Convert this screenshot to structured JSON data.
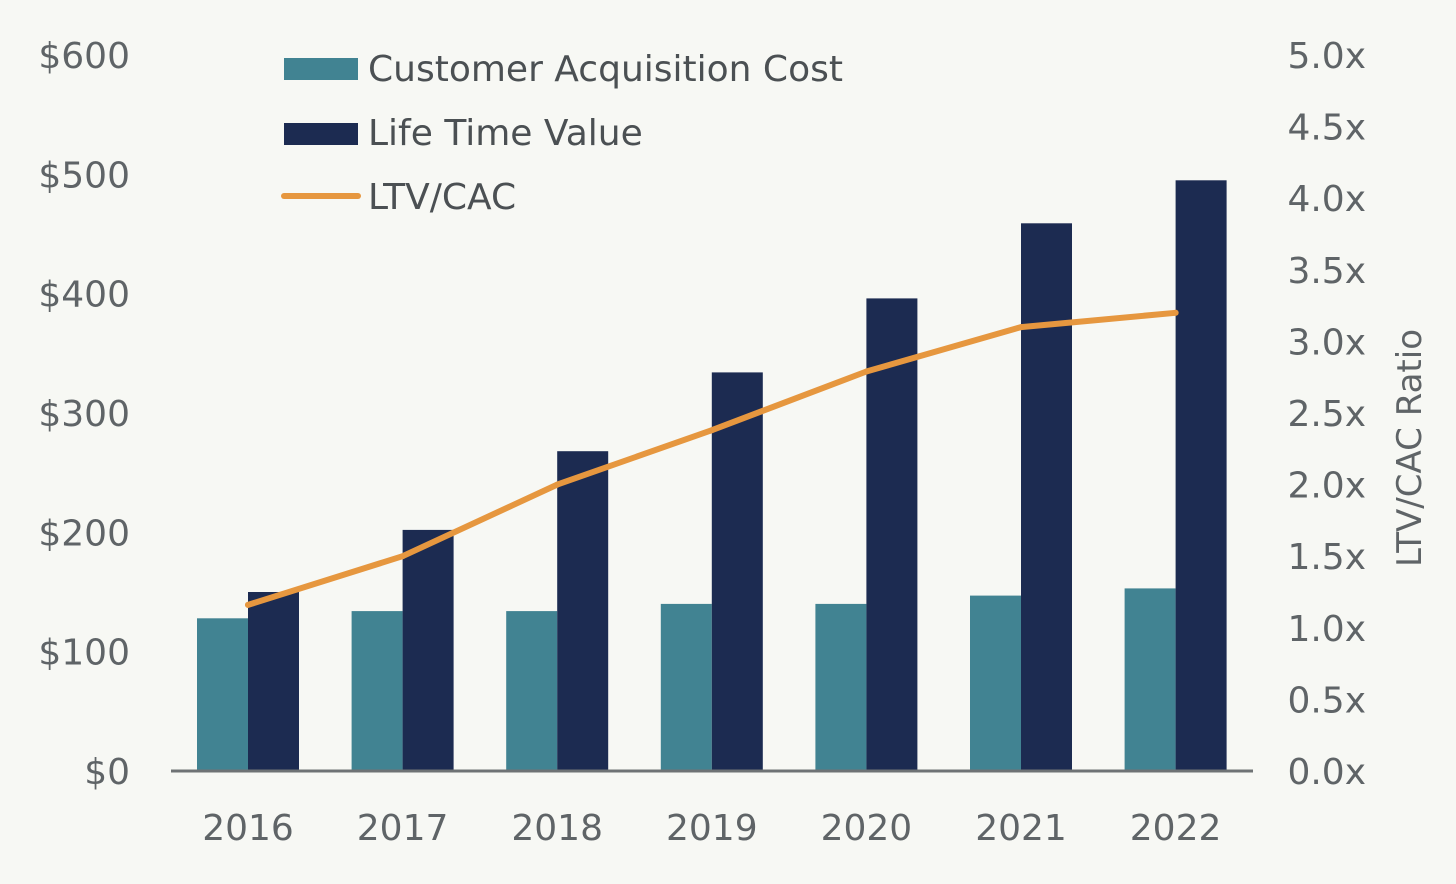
{
  "chart_data": {
    "type": "bar",
    "categories": [
      "2016",
      "2017",
      "2018",
      "2019",
      "2020",
      "2021",
      "2022"
    ],
    "series": [
      {
        "name": "Customer Acquisition Cost",
        "type": "bar",
        "axis": "left",
        "color": "#418392",
        "values": [
          128,
          134,
          134,
          140,
          140,
          147,
          153
        ]
      },
      {
        "name": "Life Time Value",
        "type": "bar",
        "axis": "left",
        "color": "#1c2b51",
        "values": [
          150,
          202,
          268,
          334,
          396,
          459,
          495
        ]
      },
      {
        "name": "LTV/CAC",
        "type": "line",
        "axis": "right",
        "color": "#e6973f",
        "values": [
          1.16,
          1.5,
          2.0,
          2.38,
          2.79,
          3.1,
          3.2
        ]
      }
    ],
    "y_left": {
      "lim": [
        0,
        600
      ],
      "ticks": [
        0,
        100,
        200,
        300,
        400,
        500,
        600
      ],
      "tick_labels": [
        "$0",
        "$100",
        "$200",
        "$300",
        "$400",
        "$500",
        "$600"
      ]
    },
    "y_right": {
      "label": "LTV/CAC Ratio",
      "lim": [
        0,
        5
      ],
      "ticks": [
        0,
        0.5,
        1,
        1.5,
        2,
        2.5,
        3,
        3.5,
        4,
        4.5,
        5
      ],
      "tick_labels": [
        "0.0x",
        "0.5x",
        "1.0x",
        "1.5x",
        "2.0x",
        "2.5x",
        "3.0x",
        "3.5x",
        "4.0x",
        "4.5x",
        "5.0x"
      ]
    },
    "legend": {
      "placement": "top-left",
      "items": [
        "Customer Acquisition Cost",
        "Life Time Value",
        "LTV/CAC"
      ]
    },
    "grid": false
  }
}
